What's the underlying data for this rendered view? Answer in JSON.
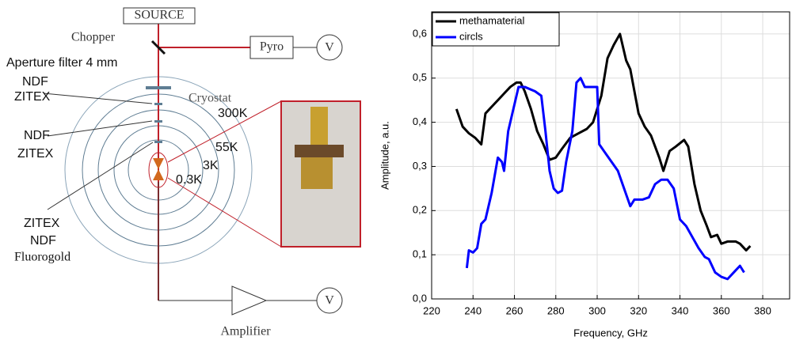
{
  "diagram": {
    "source": "SOURCE",
    "chopper": "Chopper",
    "pyro": "Pyro",
    "volt_top": "V",
    "aperture": "Aperture filter 4 mm",
    "filter1": [
      "NDF",
      "ZITEX"
    ],
    "cryostat": "Cryostat",
    "stages": [
      "300K",
      "55K",
      "3K",
      "0.3K"
    ],
    "filter2": [
      "NDF",
      "ZITEX"
    ],
    "filter3": [
      "ZITEX",
      "NDF",
      "Fluorogold"
    ],
    "volt_bottom": "V",
    "amplifier": "Amplifier"
  },
  "chart_data": {
    "type": "line",
    "xlabel": "Frequency, GHz",
    "ylabel": "Amplitude, a.u.",
    "xlim": [
      220,
      393
    ],
    "ylim": [
      0,
      0.65
    ],
    "xticks": [
      220,
      240,
      260,
      280,
      300,
      320,
      340,
      360,
      380
    ],
    "yticks": [
      {
        "value": 0,
        "label": "0,0"
      },
      {
        "value": 0.1,
        "label": "0,1"
      },
      {
        "value": 0.2,
        "label": "0,2"
      },
      {
        "value": 0.3,
        "label": "0,3"
      },
      {
        "value": 0.4,
        "label": "0,4"
      },
      {
        "value": 0.5,
        "label": "0,5"
      },
      {
        "value": 0.6,
        "label": "0,6"
      }
    ],
    "grid": true,
    "legend": "top-left",
    "series": [
      {
        "name": "methamaterial",
        "color": "#000000",
        "x": [
          232,
          235,
          238,
          241,
          244,
          246,
          250,
          254,
          258,
          261,
          263,
          265,
          268,
          271,
          274,
          277,
          280,
          283,
          287,
          291,
          295,
          298,
          302,
          305,
          308,
          311,
          314,
          316,
          320,
          323,
          326,
          330,
          332,
          335,
          338,
          342,
          344,
          347,
          350,
          353,
          355,
          358,
          360,
          363,
          367,
          369,
          372,
          374
        ],
        "values": [
          0.43,
          0.39,
          0.375,
          0.365,
          0.35,
          0.42,
          0.44,
          0.46,
          0.48,
          0.49,
          0.49,
          0.47,
          0.43,
          0.38,
          0.35,
          0.315,
          0.32,
          0.34,
          0.365,
          0.375,
          0.385,
          0.4,
          0.46,
          0.545,
          0.575,
          0.6,
          0.54,
          0.52,
          0.42,
          0.39,
          0.37,
          0.32,
          0.29,
          0.335,
          0.345,
          0.36,
          0.345,
          0.26,
          0.2,
          0.165,
          0.14,
          0.145,
          0.125,
          0.13,
          0.13,
          0.125,
          0.11,
          0.12
        ]
      },
      {
        "name": "circls",
        "color": "#0000ff",
        "x": [
          237,
          238,
          240,
          242,
          244,
          246,
          249,
          252,
          254,
          255,
          257,
          259,
          262,
          265,
          270,
          273,
          275,
          277,
          279,
          281,
          283,
          285,
          288,
          290,
          292,
          294,
          298,
          300,
          301,
          304,
          307,
          310,
          313,
          316,
          318,
          322,
          325,
          328,
          331,
          334,
          337,
          340,
          343,
          346,
          349,
          352,
          354,
          357,
          360,
          363,
          367,
          369,
          371
        ],
        "values": [
          0.07,
          0.11,
          0.105,
          0.115,
          0.17,
          0.18,
          0.24,
          0.32,
          0.31,
          0.29,
          0.38,
          0.42,
          0.48,
          0.48,
          0.47,
          0.46,
          0.38,
          0.29,
          0.25,
          0.24,
          0.245,
          0.31,
          0.38,
          0.49,
          0.5,
          0.48,
          0.48,
          0.48,
          0.35,
          0.33,
          0.31,
          0.29,
          0.25,
          0.21,
          0.225,
          0.225,
          0.23,
          0.26,
          0.27,
          0.27,
          0.25,
          0.18,
          0.165,
          0.14,
          0.115,
          0.095,
          0.09,
          0.06,
          0.05,
          0.045,
          0.065,
          0.075,
          0.06
        ]
      }
    ]
  }
}
